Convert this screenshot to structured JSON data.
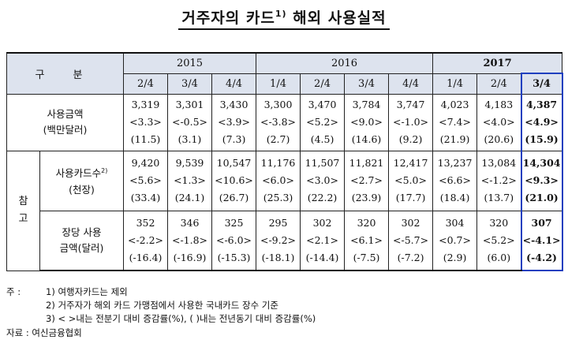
{
  "title": "거주자의 카드",
  "title_sup": "1)",
  "title_rest": " 해외 사용실적",
  "header": {
    "gubun": "구 분",
    "years": [
      "2015",
      "2016",
      "2017"
    ],
    "quarters": [
      "2/4",
      "3/4",
      "4/4",
      "1/4",
      "2/4",
      "3/4",
      "4/4",
      "1/4",
      "2/4",
      "3/4"
    ]
  },
  "ref_label": "참 고",
  "rows": [
    {
      "label_lines": [
        "사용금액",
        "(백만달러)"
      ],
      "cells": [
        [
          "3,319",
          "<3.3>",
          "(11.5)"
        ],
        [
          "3,301",
          "<-0.5>",
          "(3.1)"
        ],
        [
          "3,430",
          "<3.9>",
          "(7.3)"
        ],
        [
          "3,300",
          "<-3.8>",
          "(2.7)"
        ],
        [
          "3,470",
          "<5.2>",
          "(4.5)"
        ],
        [
          "3,784",
          "<9.0>",
          "(14.6)"
        ],
        [
          "3,747",
          "<-1.0>",
          "(9.2)"
        ],
        [
          "4,023",
          "<7.4>",
          "(21.9)"
        ],
        [
          "4,183",
          "<4.0>",
          "(20.6)"
        ],
        [
          "4,387",
          "<4.9>",
          "(15.9)"
        ]
      ]
    },
    {
      "label_lines": [
        "사용카드수",
        "(천장)"
      ],
      "label_sup": "2)",
      "cells": [
        [
          "9,420",
          "<5.6>",
          "(33.4)"
        ],
        [
          "9,539",
          "<1.3>",
          "(24.1)"
        ],
        [
          "10,547",
          "<10.6>",
          "(26.7)"
        ],
        [
          "11,176",
          "<6.0>",
          "(25.3)"
        ],
        [
          "11,507",
          "<3.0>",
          "(22.2)"
        ],
        [
          "11,821",
          "<2.7>",
          "(23.9)"
        ],
        [
          "12,417",
          "<5.0>",
          "(17.7)"
        ],
        [
          "13,237",
          "<6.6>",
          "(18.4)"
        ],
        [
          "13,084",
          "<-1.2>",
          "(13.7)"
        ],
        [
          "14,304",
          "<9.3>",
          "(21.0)"
        ]
      ]
    },
    {
      "label_lines": [
        "장당 사용",
        "금액(달러)"
      ],
      "cells": [
        [
          "352",
          "<-2.2>",
          "(-16.4)"
        ],
        [
          "346",
          "<-1.8>",
          "(-16.9)"
        ],
        [
          "325",
          "<-6.0>",
          "(-15.3)"
        ],
        [
          "295",
          "<-9.2>",
          "(-18.1)"
        ],
        [
          "302",
          "<2.1>",
          "(-14.4)"
        ],
        [
          "320",
          "<6.1>",
          "(-7.5)"
        ],
        [
          "302",
          "<-5.7>",
          "(-7.2)"
        ],
        [
          "304",
          "<0.7>",
          "(2.9)"
        ],
        [
          "320",
          "<5.2>",
          "(6.0)"
        ],
        [
          "307",
          "<-4.1>",
          "(-4.2)"
        ]
      ]
    }
  ],
  "notes": {
    "key": "주 :",
    "lines": [
      "1) 여행자카드는 제외",
      "2) 거주자가 해외 카드 가맹점에서 사용한 국내카드 장수 기준",
      "3) < >내는 전분기 대비 증감률(%), ( )내는 전년동기 대비 증감률(%)"
    ]
  },
  "source": "자료 : 여신금융협회",
  "colors": {
    "header_bg": "#dde3ee",
    "highlight_border": "#1f3fbf"
  }
}
